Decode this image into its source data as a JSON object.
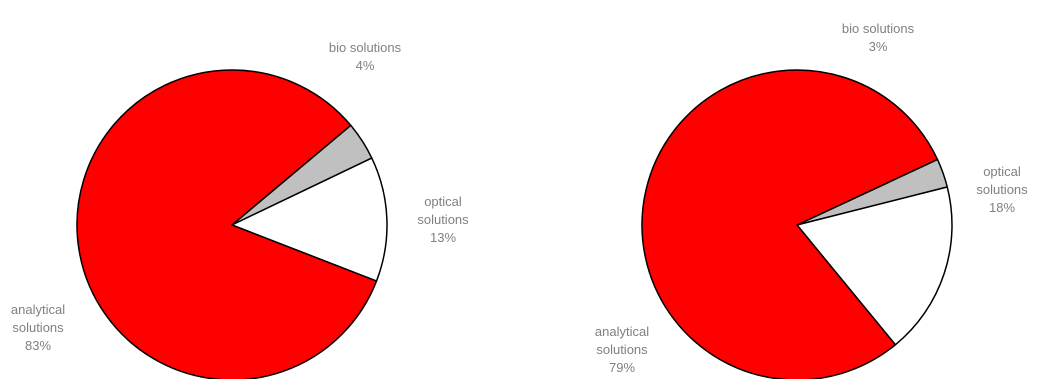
{
  "colors": {
    "analytical": "#ff0000",
    "bio": "#c0c0c0",
    "optical": "#ffffff",
    "outline": "#000000",
    "label_text": "#808080"
  },
  "chart_data": [
    {
      "type": "pie",
      "slices": [
        {
          "label_lines": [
            "bio solutions"
          ],
          "value": 4,
          "value_label": "4%",
          "color": "#c0c0c0"
        },
        {
          "label_lines": [
            "optical",
            "solutions"
          ],
          "value": 13,
          "value_label": "13%",
          "color": "#ffffff"
        },
        {
          "label_lines": [
            "analytical",
            "solutions"
          ],
          "value": 83,
          "value_label": "83%",
          "color": "#ff0000"
        }
      ]
    },
    {
      "type": "pie",
      "slices": [
        {
          "label_lines": [
            "bio solutions"
          ],
          "value": 3,
          "value_label": "3%",
          "color": "#c0c0c0"
        },
        {
          "label_lines": [
            "optical",
            "solutions"
          ],
          "value": 18,
          "value_label": "18%",
          "color": "#ffffff"
        },
        {
          "label_lines": [
            "analytical",
            "solutions"
          ],
          "value": 79,
          "value_label": "79%",
          "color": "#ff0000"
        }
      ]
    }
  ]
}
